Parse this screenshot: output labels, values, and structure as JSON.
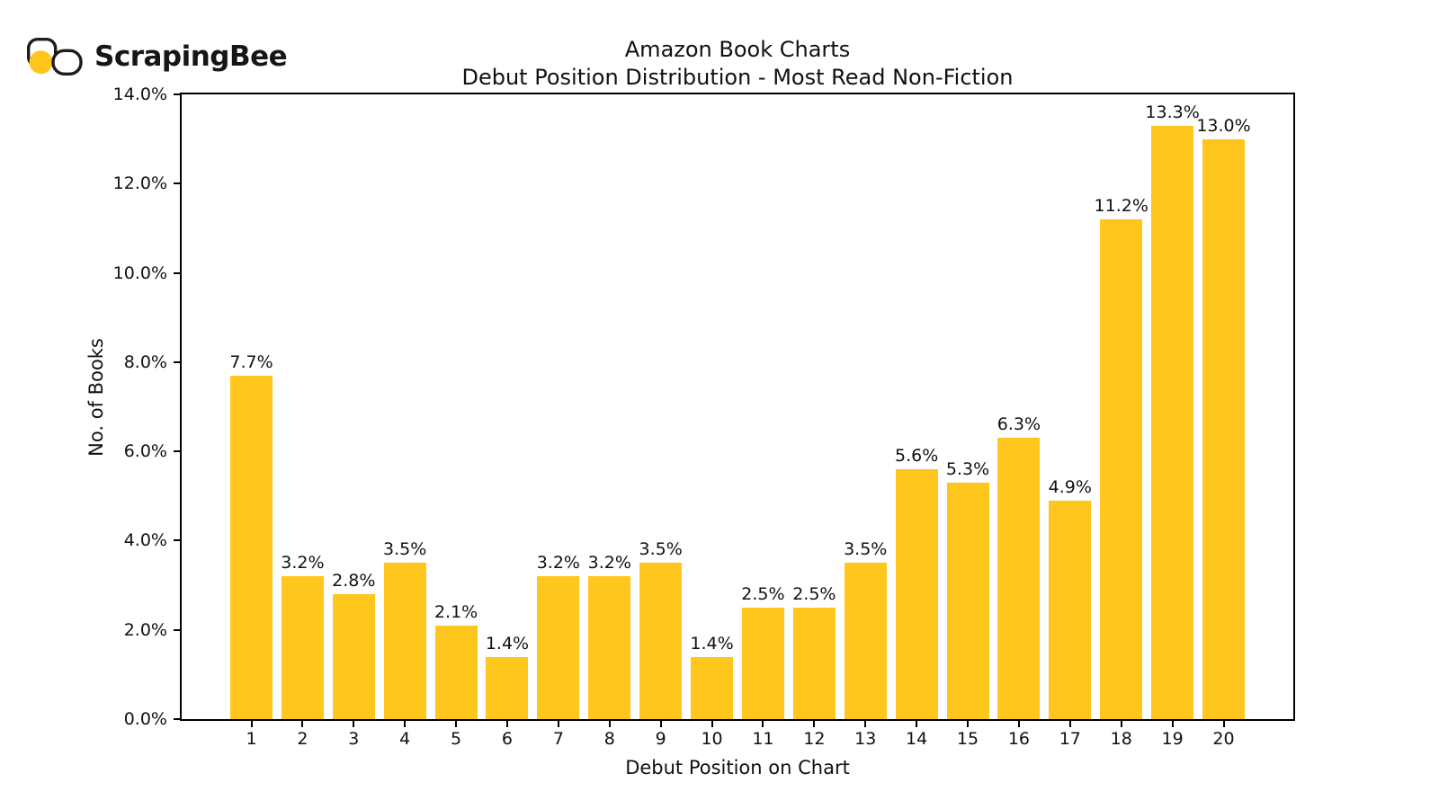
{
  "brand": {
    "name": "ScrapingBee",
    "logo_yellow": "#ffc61e",
    "logo_outline": "#1d1d1d"
  },
  "chart_data": {
    "type": "bar",
    "title": "Amazon Book Charts",
    "subtitle": "Debut Position Distribution - Most Read Non-Fiction",
    "xlabel": "Debut Position on Chart",
    "ylabel": "No. of Books",
    "categories": [
      "1",
      "2",
      "3",
      "4",
      "5",
      "6",
      "7",
      "8",
      "9",
      "10",
      "11",
      "12",
      "13",
      "14",
      "15",
      "16",
      "17",
      "18",
      "19",
      "20"
    ],
    "values": [
      7.7,
      3.2,
      2.8,
      3.5,
      2.1,
      1.4,
      3.2,
      3.2,
      3.5,
      1.4,
      2.5,
      2.5,
      3.5,
      5.6,
      5.3,
      6.3,
      4.9,
      11.2,
      13.3,
      13.0
    ],
    "bar_labels": [
      "7.7%",
      "3.2%",
      "2.8%",
      "3.5%",
      "2.1%",
      "1.4%",
      "3.2%",
      "3.2%",
      "3.5%",
      "1.4%",
      "2.5%",
      "2.5%",
      "3.5%",
      "5.6%",
      "5.3%",
      "6.3%",
      "4.9%",
      "11.2%",
      "13.3%",
      "13.0%"
    ],
    "ylim": [
      0,
      14
    ],
    "ytick_labels": [
      "0.0%",
      "2.0%",
      "4.0%",
      "6.0%",
      "8.0%",
      "10.0%",
      "12.0%",
      "14.0%"
    ],
    "bar_color": "#ffc61e",
    "axis_color": "#000000",
    "grid": false,
    "legend": "none"
  }
}
